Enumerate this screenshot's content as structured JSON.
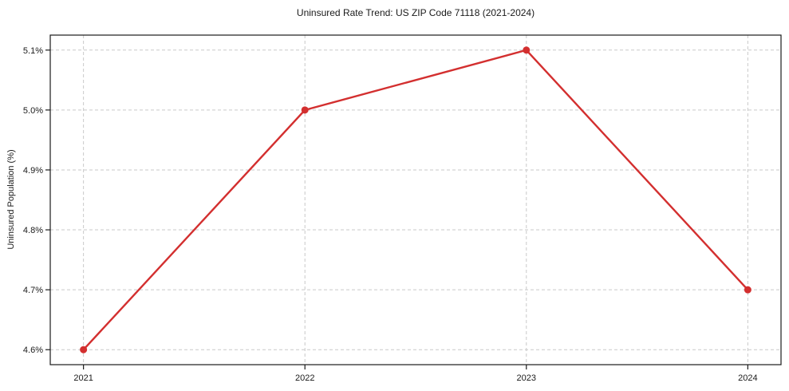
{
  "figure": {
    "background": "#ffffff"
  },
  "chart_data": {
    "type": "line",
    "title": "Uninsured Rate Trend: US ZIP Code 71118 (2021-2024)",
    "xlabel": "",
    "ylabel": "Uninsured Population (%)",
    "x": [
      2021,
      2022,
      2023,
      2024
    ],
    "values": [
      4.6,
      5.0,
      5.1,
      4.7
    ],
    "xlim": [
      2020.85,
      2024.15
    ],
    "ylim": [
      4.575,
      5.125
    ],
    "x_ticks": [
      {
        "v": 2021,
        "label": "2021"
      },
      {
        "v": 2022,
        "label": "2022"
      },
      {
        "v": 2023,
        "label": "2023"
      },
      {
        "v": 2024,
        "label": "2024"
      }
    ],
    "y_ticks": [
      {
        "v": 4.6,
        "label": "4.6%"
      },
      {
        "v": 4.7,
        "label": "4.7%"
      },
      {
        "v": 4.8,
        "label": "4.8%"
      },
      {
        "v": 4.9,
        "label": "4.9%"
      },
      {
        "v": 5.0,
        "label": "5.0%"
      },
      {
        "v": 5.1,
        "label": "5.1%"
      }
    ],
    "grid": {
      "show": true,
      "style": "dashed",
      "axes": "both",
      "color": "#c9c9c9"
    },
    "line_color": "#d32f2f",
    "marker": "circle",
    "marker_radius": 4.5,
    "line_width": 2.4,
    "axis_color": "#1a1a1a",
    "legend": "none"
  }
}
